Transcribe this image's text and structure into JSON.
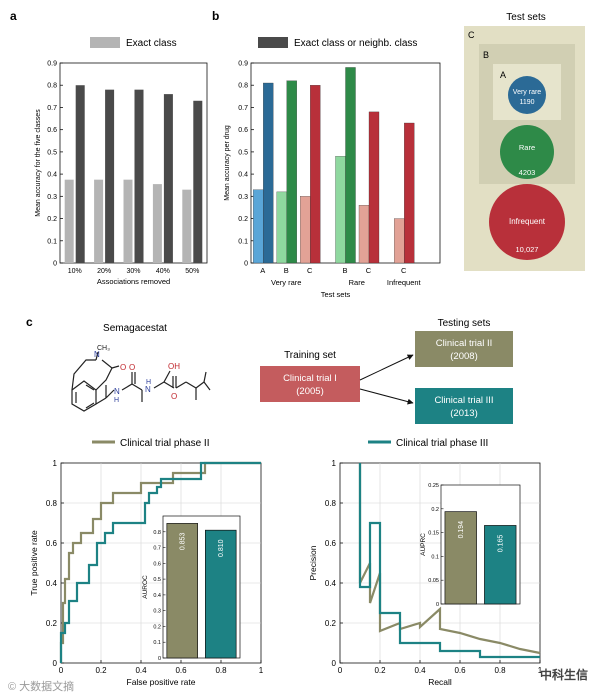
{
  "panel_labels": {
    "a": "a",
    "b": "b",
    "c": "c"
  },
  "colors": {
    "exact": "#b4b4b4",
    "neigh": "#4a4a4a",
    "vr_neigh": "#2b6a96",
    "vr_exact": "#5aa6d8",
    "r_neigh": "#2e8a48",
    "r_exact": "#8fd89f",
    "i_neigh": "#b8303a",
    "i_exact": "#e2a296",
    "olive": "#8a8a66",
    "teal": "#1d8284",
    "train": "#c45c5e",
    "venn_bg": "#e2dfc4",
    "venn_mid": "#d1cfb3",
    "venn_inner": "#c7c6ab"
  },
  "legend": {
    "exact": "Exact class",
    "neigh": "Exact class or neighb. class"
  },
  "chart_data": [
    {
      "id": "a",
      "type": "bar",
      "categories": [
        "10%",
        "20%",
        "30%",
        "40%",
        "50%"
      ],
      "series": [
        {
          "name": "Exact class",
          "values": [
            0.375,
            0.375,
            0.375,
            0.355,
            0.33
          ]
        },
        {
          "name": "Exact class or neighb. class",
          "values": [
            0.8,
            0.78,
            0.78,
            0.76,
            0.73
          ]
        }
      ],
      "xlabel": "Associations removed",
      "ylabel": "Mean accuracy for the five classes",
      "ylim": [
        0,
        0.9
      ],
      "yticks": [
        "0",
        "0.1",
        "0.2",
        "0.3",
        "0.4",
        "0.5",
        "0.6",
        "0.7",
        "0.8",
        "0.9"
      ]
    },
    {
      "id": "b",
      "type": "bar",
      "groups": [
        {
          "name": "Very rare",
          "bars": [
            {
              "label": "A",
              "exact": 0.33,
              "neigh": 0.81
            },
            {
              "label": "B",
              "exact": 0.32,
              "neigh": 0.82
            },
            {
              "label": "C",
              "exact": 0.3,
              "neigh": 0.8
            }
          ]
        },
        {
          "name": "Rare",
          "bars": [
            {
              "label": "B",
              "exact": 0.48,
              "neigh": 0.88
            },
            {
              "label": "C",
              "exact": 0.26,
              "neigh": 0.68
            }
          ]
        },
        {
          "name": "Infrequent",
          "bars": [
            {
              "label": "C",
              "exact": 0.2,
              "neigh": 0.63
            }
          ]
        }
      ],
      "xlabel": "Test sets",
      "ylabel": "Mean accuracy per drug",
      "ylim": [
        0,
        0.9
      ],
      "yticks": [
        "0",
        "0.1",
        "0.2",
        "0.3",
        "0.4",
        "0.5",
        "0.6",
        "0.7",
        "0.8",
        "0.9"
      ]
    },
    {
      "id": "roc",
      "type": "line",
      "xlabel": "False positive rate",
      "ylabel": "True positive rate",
      "xlim": [
        0,
        1
      ],
      "ylim": [
        0,
        1
      ],
      "xticks": [
        "0",
        "0.2",
        "0.4",
        "0.6",
        "0.8",
        "1"
      ],
      "yticks": [
        "0",
        "0.2",
        "0.4",
        "0.6",
        "0.8",
        "1"
      ],
      "series": [
        {
          "name": "Clinical trial phase II",
          "x": [
            0,
            0,
            0.01,
            0.01,
            0.02,
            0.02,
            0.04,
            0.04,
            0.06,
            0.06,
            0.08,
            0.08,
            0.1,
            0.1,
            0.16,
            0.16,
            0.2,
            0.2,
            0.26,
            0.26,
            0.4,
            0.4,
            0.56,
            0.56,
            0.72,
            0.72,
            1.0
          ],
          "y": [
            0,
            0.1,
            0.1,
            0.3,
            0.3,
            0.42,
            0.42,
            0.55,
            0.55,
            0.6,
            0.6,
            0.6,
            0.6,
            0.65,
            0.65,
            0.72,
            0.72,
            0.8,
            0.8,
            0.85,
            0.85,
            0.9,
            0.9,
            0.95,
            0.95,
            1.0,
            1.0
          ]
        },
        {
          "name": "Clinical trial phase III",
          "x": [
            0,
            0,
            0.02,
            0.02,
            0.04,
            0.04,
            0.08,
            0.08,
            0.14,
            0.14,
            0.18,
            0.18,
            0.22,
            0.22,
            0.26,
            0.26,
            0.42,
            0.42,
            0.44,
            0.44,
            0.48,
            0.48,
            0.5,
            0.5,
            0.7,
            0.7,
            1.0
          ],
          "y": [
            0,
            0.15,
            0.15,
            0.2,
            0.2,
            0.31,
            0.31,
            0.4,
            0.4,
            0.49,
            0.49,
            0.6,
            0.6,
            0.65,
            0.65,
            0.7,
            0.7,
            0.8,
            0.8,
            0.85,
            0.85,
            0.88,
            0.88,
            0.92,
            0.92,
            1.0,
            1.0
          ]
        }
      ]
    },
    {
      "id": "auroc",
      "type": "bar",
      "categories": [
        "Clinical trial phase II",
        "Clinical trial phase III"
      ],
      "values": [
        0.853,
        0.81
      ],
      "data_labels": [
        "0.853",
        "0.810"
      ],
      "ylabel": "AUROC",
      "ylim": [
        0,
        0.9
      ],
      "yticks": [
        "0",
        "0.1",
        "0.2",
        "0.3",
        "0.4",
        "0.5",
        "0.6",
        "0.7",
        "0.8"
      ]
    },
    {
      "id": "pr",
      "type": "line",
      "xlabel": "Recall",
      "ylabel": "Precision",
      "xlim": [
        0,
        1
      ],
      "ylim": [
        0,
        1
      ],
      "xticks": [
        "0",
        "0.2",
        "0.4",
        "0.6",
        "0.8",
        "1"
      ],
      "yticks": [
        "0",
        "0.2",
        "0.4",
        "0.6",
        "0.8",
        "1"
      ],
      "series": [
        {
          "name": "Clinical trial phase II",
          "x": [
            0.1,
            0.1,
            0.15,
            0.15,
            0.2,
            0.2,
            0.3,
            0.3,
            0.4,
            0.4,
            0.5,
            0.5,
            0.6,
            0.7,
            0.8,
            0.9,
            1.0
          ],
          "y": [
            1.0,
            0.4,
            0.5,
            0.3,
            0.45,
            0.16,
            0.2,
            0.17,
            0.2,
            0.18,
            0.27,
            0.17,
            0.15,
            0.12,
            0.1,
            0.07,
            0.05
          ]
        },
        {
          "name": "Clinical trial phase III",
          "x": [
            0.1,
            0.1,
            0.15,
            0.15,
            0.2,
            0.2,
            0.3,
            0.3,
            0.5,
            0.5,
            0.7,
            0.7,
            1.0
          ],
          "y": [
            1.0,
            0.38,
            0.38,
            0.7,
            0.7,
            0.25,
            0.25,
            0.1,
            0.1,
            0.06,
            0.06,
            0.03,
            0.03
          ]
        }
      ]
    },
    {
      "id": "auprc",
      "type": "bar",
      "categories": [
        "Clinical trial phase II",
        "Clinical trial phase III"
      ],
      "values": [
        0.194,
        0.165
      ],
      "data_labels": [
        "0.194",
        "0.165"
      ],
      "ylabel": "AUPRC",
      "ylim": [
        0,
        0.25
      ],
      "yticks": [
        "0",
        "0.05",
        "0.1",
        "0.15",
        "0.2",
        "0.25"
      ]
    }
  ],
  "venn": {
    "title": "Test sets",
    "labels": {
      "outer": "C",
      "mid": "B",
      "inner": "A"
    },
    "very_rare": {
      "name": "Very rare",
      "count": "1190"
    },
    "rare": {
      "name": "Rare",
      "count": "4203"
    },
    "infrequent": {
      "name": "Infrequent",
      "count": "10,027"
    }
  },
  "molecule": {
    "name": "Semagacestat",
    "atoms": {
      "N": "N",
      "O": "O",
      "H": "H",
      "OH": "OH",
      "CH3": "CH₃"
    }
  },
  "flow": {
    "training_title": "Training set",
    "training": {
      "name": "Clinical trial I",
      "year": "(2005)"
    },
    "testing_title": "Testing sets",
    "test1": {
      "name": "Clinical trial II",
      "year": "(2008)"
    },
    "test2": {
      "name": "Clinical trial III",
      "year": "(2013)"
    }
  },
  "legend_c": {
    "phase2": "Clinical trial phase II",
    "phase3": "Clinical trial phase III"
  },
  "watermarks": {
    "left": "© 大数据文摘",
    "right": "中科生信"
  }
}
